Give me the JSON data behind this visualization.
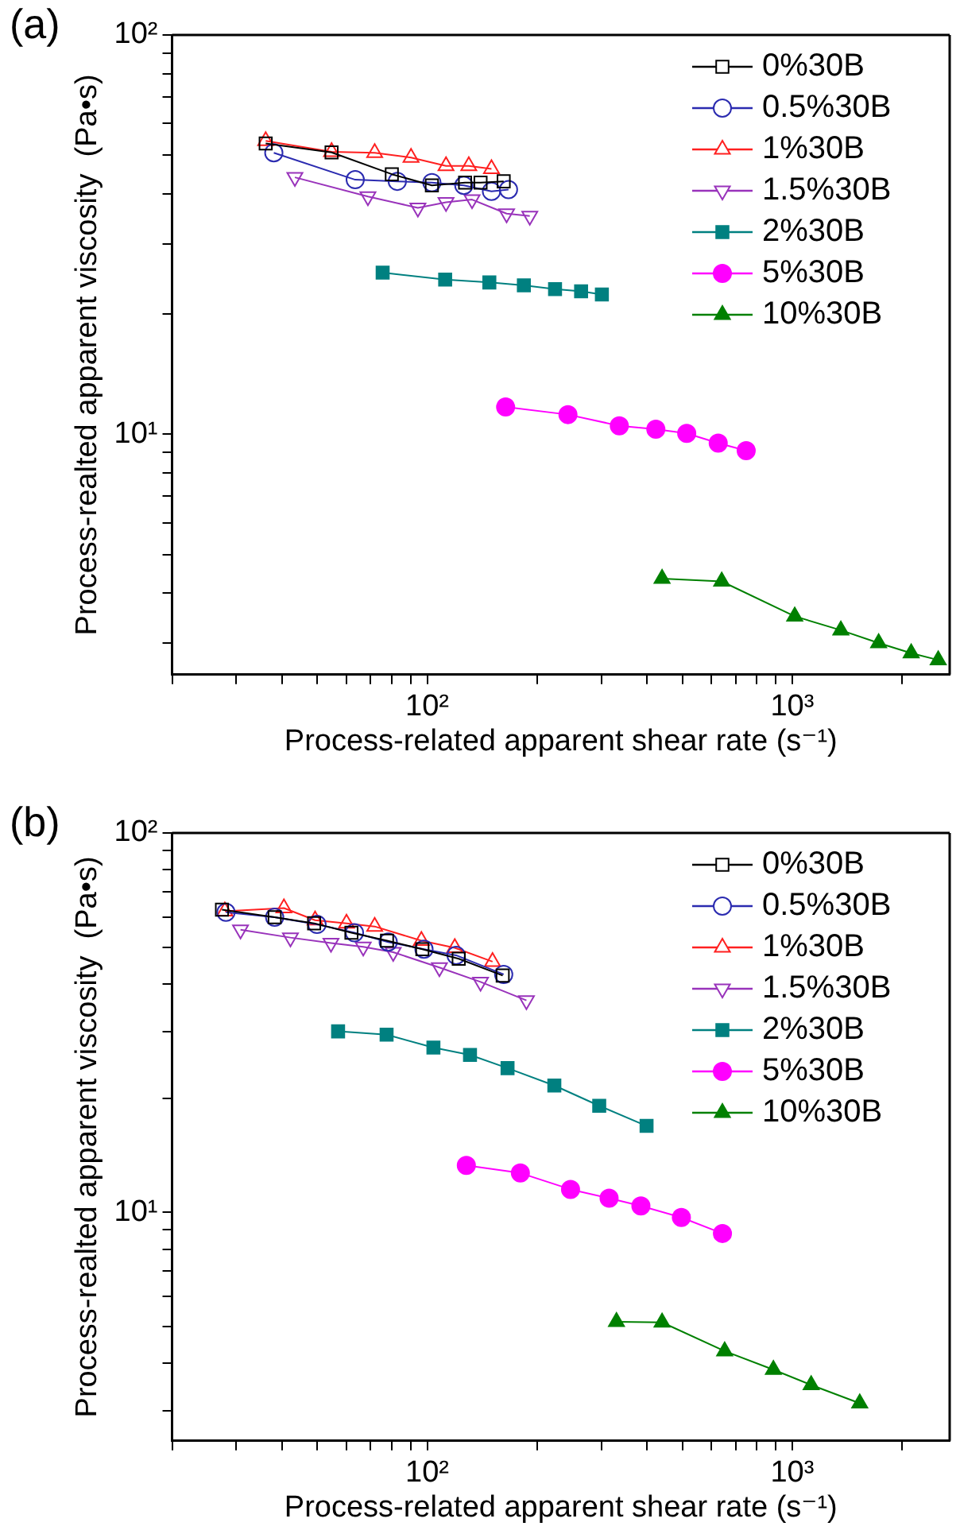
{
  "chart_data": [
    {
      "type": "line",
      "title": "(a)",
      "xlabel": "Process-related apparent shear rate (s⁻¹)",
      "ylabel": "Process-realted apparent viscosity  (Pa•s)",
      "log": "xy",
      "grid": false,
      "legend": "top right",
      "line_style": "solid",
      "xlim": [
        20,
        2700
      ],
      "ylim": [
        2.5,
        100
      ],
      "xticks": [
        {
          "value": 20,
          "label": null
        },
        {
          "value": 30,
          "label": null
        },
        {
          "value": 40,
          "label": null
        },
        {
          "value": 50,
          "label": null
        },
        {
          "value": 60,
          "label": null
        },
        {
          "value": 70,
          "label": null
        },
        {
          "value": 80,
          "label": null
        },
        {
          "value": 90,
          "label": null
        },
        {
          "value": 100,
          "label": "10²"
        },
        {
          "value": 200,
          "label": null
        },
        {
          "value": 300,
          "label": null
        },
        {
          "value": 400,
          "label": null
        },
        {
          "value": 500,
          "label": null
        },
        {
          "value": 600,
          "label": null
        },
        {
          "value": 700,
          "label": null
        },
        {
          "value": 800,
          "label": null
        },
        {
          "value": 900,
          "label": null
        },
        {
          "value": 1000,
          "label": "10³"
        },
        {
          "value": 2000,
          "label": null
        }
      ],
      "yticks": [
        {
          "value": 3,
          "label": null
        },
        {
          "value": 4,
          "label": null
        },
        {
          "value": 5,
          "label": null
        },
        {
          "value": 6,
          "label": null
        },
        {
          "value": 7,
          "label": null
        },
        {
          "value": 8,
          "label": null
        },
        {
          "value": 9,
          "label": null
        },
        {
          "value": 10,
          "label": "10¹"
        },
        {
          "value": 20,
          "label": null
        },
        {
          "value": 30,
          "label": null
        },
        {
          "value": 40,
          "label": null
        },
        {
          "value": 50,
          "label": null
        },
        {
          "value": 60,
          "label": null
        },
        {
          "value": 70,
          "label": null
        },
        {
          "value": 80,
          "label": null
        },
        {
          "value": 90,
          "label": null
        },
        {
          "value": 100,
          "label": "10²"
        }
      ],
      "series": [
        {
          "name": "0%30B",
          "color": "#000000",
          "marker": "square-open",
          "x": [
            36.1,
            54.7,
            80,
            103,
            127,
            140,
            162
          ],
          "values": [
            53.5,
            50.8,
            44.8,
            42,
            42.7,
            42.7,
            43
          ]
        },
        {
          "name": "0.5%30B",
          "color": "#2b2bb0",
          "marker": "circle-open",
          "x": [
            38,
            63.5,
            82.8,
            103,
            126,
            150,
            167
          ],
          "values": [
            50.7,
            43.4,
            43,
            42.7,
            42,
            40.6,
            41
          ]
        },
        {
          "name": "1%30B",
          "color": "#ff2020",
          "marker": "triangle-open",
          "x": [
            36.1,
            54.7,
            71.8,
            90.3,
            112.6,
            130,
            150
          ],
          "values": [
            54.3,
            51,
            50.7,
            49.3,
            47,
            47,
            46.2
          ]
        },
        {
          "name": "1.5%30B",
          "color": "#9933bb",
          "marker": "triangle-down-open",
          "x": [
            43.4,
            68.8,
            94.3,
            112.6,
            132.7,
            165,
            191
          ],
          "values": [
            44,
            39.4,
            36.9,
            38.1,
            38.7,
            35.7,
            35.2
          ]
        },
        {
          "name": "2%30B",
          "color": "#008080",
          "marker": "square",
          "x": [
            75.5,
            112,
            148,
            184,
            224,
            264,
            301
          ],
          "values": [
            25.4,
            24.4,
            24,
            23.6,
            23.1,
            22.8,
            22.4
          ]
        },
        {
          "name": "5%30B",
          "color": "#ff00ff",
          "marker": "circle",
          "x": [
            164,
            243,
            336,
            423,
            514,
            627,
            748
          ],
          "values": [
            11.7,
            11.2,
            10.5,
            10.3,
            10.05,
            9.5,
            9.1
          ]
        },
        {
          "name": "10%30B",
          "color": "#008000",
          "marker": "triangle",
          "x": [
            440,
            641,
            1016,
            1359,
            1725,
            2118,
            2512
          ],
          "values": [
            4.35,
            4.28,
            3.5,
            3.23,
            3,
            2.83,
            2.72
          ]
        }
      ]
    },
    {
      "type": "line",
      "title": "(b)",
      "xlabel": "Process-related apparent shear rate (s⁻¹)",
      "ylabel": "Process-realted apparent viscosity  (Pa•s)",
      "log": "xy",
      "grid": false,
      "legend": "top right",
      "line_style": "solid",
      "xlim": [
        20,
        2700
      ],
      "ylim": [
        2.5,
        100
      ],
      "xticks": [
        {
          "value": 20,
          "label": null
        },
        {
          "value": 30,
          "label": null
        },
        {
          "value": 40,
          "label": null
        },
        {
          "value": 50,
          "label": null
        },
        {
          "value": 60,
          "label": null
        },
        {
          "value": 70,
          "label": null
        },
        {
          "value": 80,
          "label": null
        },
        {
          "value": 90,
          "label": null
        },
        {
          "value": 100,
          "label": "10²"
        },
        {
          "value": 200,
          "label": null
        },
        {
          "value": 300,
          "label": null
        },
        {
          "value": 400,
          "label": null
        },
        {
          "value": 500,
          "label": null
        },
        {
          "value": 600,
          "label": null
        },
        {
          "value": 700,
          "label": null
        },
        {
          "value": 800,
          "label": null
        },
        {
          "value": 900,
          "label": null
        },
        {
          "value": 1000,
          "label": "10³"
        },
        {
          "value": 2000,
          "label": null
        }
      ],
      "yticks": [
        {
          "value": 3,
          "label": null
        },
        {
          "value": 4,
          "label": null
        },
        {
          "value": 5,
          "label": null
        },
        {
          "value": 6,
          "label": null
        },
        {
          "value": 7,
          "label": null
        },
        {
          "value": 8,
          "label": null
        },
        {
          "value": 9,
          "label": null
        },
        {
          "value": 10,
          "label": "10¹"
        },
        {
          "value": 20,
          "label": null
        },
        {
          "value": 30,
          "label": null
        },
        {
          "value": 40,
          "label": null
        },
        {
          "value": 50,
          "label": null
        },
        {
          "value": 60,
          "label": null
        },
        {
          "value": 70,
          "label": null
        },
        {
          "value": 80,
          "label": null
        },
        {
          "value": 90,
          "label": null
        },
        {
          "value": 100,
          "label": "10²"
        }
      ],
      "series": [
        {
          "name": "0%30B",
          "color": "#000000",
          "marker": "square-open",
          "x": [
            27.4,
            38.2,
            49,
            62,
            77.6,
            97,
            122,
            161
          ],
          "values": [
            62.8,
            60,
            57.8,
            54.6,
            52,
            49.4,
            46.6,
            42.1
          ]
        },
        {
          "name": "0.5%30B",
          "color": "#2b2bb0",
          "marker": "circle-open",
          "x": [
            28.1,
            38.2,
            49.9,
            63.2,
            78.2,
            98,
            120,
            162
          ],
          "values": [
            61.8,
            60,
            57.4,
            54.6,
            51.6,
            49.4,
            47.6,
            42.4
          ]
        },
        {
          "name": "1%30B",
          "color": "#ff2020",
          "marker": "triangle-open",
          "x": [
            27.9,
            40.5,
            49.3,
            60.1,
            71.8,
            96.4,
            119,
            151
          ],
          "values": [
            62.2,
            63.4,
            58.9,
            57.8,
            56.7,
            52,
            49.8,
            45.8
          ]
        },
        {
          "name": "1.5%30B",
          "color": "#9933bb",
          "marker": "triangle-down-open",
          "x": [
            30.8,
            42.2,
            54.5,
            66.8,
            80.7,
            108,
            140,
            187
          ],
          "values": [
            55.6,
            53,
            51.3,
            50.1,
            48.5,
            44.2,
            40.5,
            36.2
          ]
        },
        {
          "name": "2%30B",
          "color": "#008080",
          "marker": "square",
          "x": [
            57,
            77.4,
            104,
            131,
            166,
            223,
            296,
            399
          ],
          "values": [
            30,
            29.4,
            27.2,
            26,
            24,
            21.6,
            19.1,
            16.9
          ]
        },
        {
          "name": "5%30B",
          "color": "#ff00ff",
          "marker": "circle",
          "x": [
            128,
            180,
            247,
            315,
            385,
            497,
            644
          ],
          "values": [
            13.3,
            12.7,
            11.5,
            10.9,
            10.4,
            9.7,
            8.8
          ]
        },
        {
          "name": "10%30B",
          "color": "#008000",
          "marker": "triangle",
          "x": [
            330,
            440,
            653,
            888,
            1127,
            1531
          ],
          "values": [
            5.15,
            5.13,
            4.31,
            3.85,
            3.51,
            3.14
          ]
        }
      ]
    }
  ]
}
